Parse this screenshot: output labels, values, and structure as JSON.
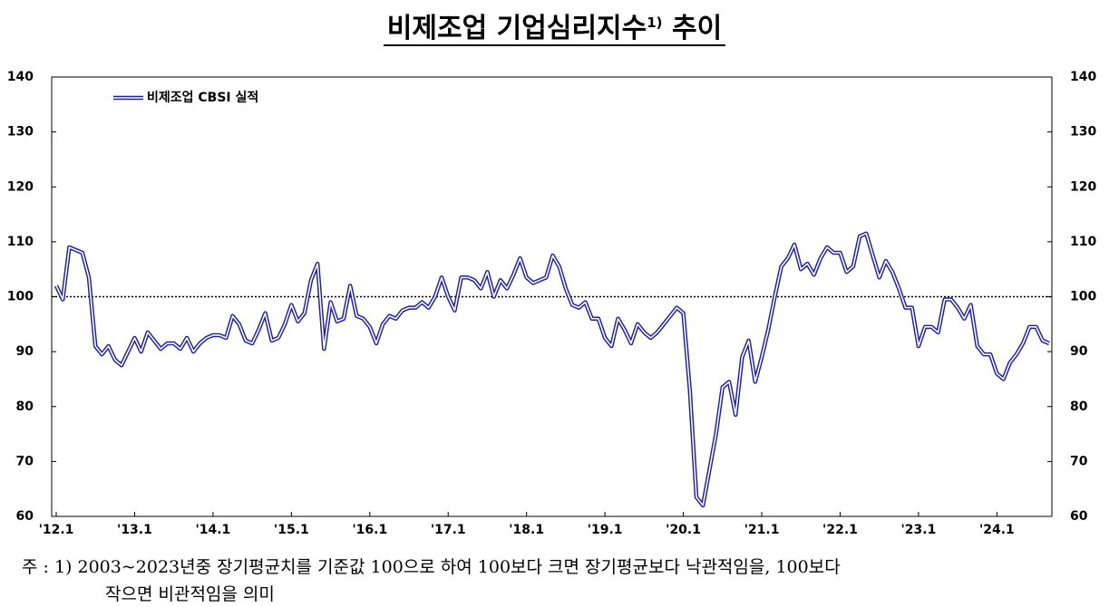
{
  "chart_data": {
    "type": "line",
    "title": "비제조업 기업심리지수",
    "title_note": "1)",
    "title_suffix": "추이",
    "categories": [
      "'12.1",
      null,
      null,
      null,
      null,
      null,
      null,
      null,
      null,
      null,
      null,
      null,
      "'13.1",
      null,
      null,
      null,
      null,
      null,
      null,
      null,
      null,
      null,
      null,
      null,
      "'14.1",
      null,
      null,
      null,
      null,
      null,
      null,
      null,
      null,
      null,
      null,
      null,
      "'15.1",
      null,
      null,
      null,
      null,
      null,
      null,
      null,
      null,
      null,
      null,
      null,
      "'16.1",
      null,
      null,
      null,
      null,
      null,
      null,
      null,
      null,
      null,
      null,
      null,
      "'17.1",
      null,
      null,
      null,
      null,
      null,
      null,
      null,
      null,
      null,
      null,
      null,
      "'18.1",
      null,
      null,
      null,
      null,
      null,
      null,
      null,
      null,
      null,
      null,
      null,
      "'19.1",
      null,
      null,
      null,
      null,
      null,
      null,
      null,
      null,
      null,
      null,
      null,
      "'20.1",
      null,
      null,
      null,
      null,
      null,
      null,
      null,
      null,
      null,
      null,
      null,
      "'21.1",
      null,
      null,
      null,
      null,
      null,
      null,
      null,
      null,
      null,
      null,
      null,
      "'22.1",
      null,
      null,
      null,
      null,
      null,
      null,
      null,
      null,
      null,
      null,
      null,
      "'23.1",
      null,
      null,
      null,
      null,
      null,
      null,
      null,
      null,
      null,
      null,
      null,
      "'24.1",
      null,
      null,
      null,
      null,
      null,
      null,
      null,
      null
    ],
    "series": [
      {
        "name": "비제조업 CBSI 실적",
        "color": "#1f1f9f",
        "values": [
          102,
          99.5,
          109,
          108.5,
          108,
          103.5,
          91,
          89.5,
          91,
          88.5,
          87.5,
          90,
          92.5,
          90,
          93.5,
          92,
          90.5,
          91.5,
          91.5,
          90.5,
          92.5,
          90,
          91.5,
          92.5,
          93,
          93,
          92.5,
          96.5,
          95,
          92,
          91.5,
          94,
          97,
          92,
          92.5,
          95,
          98.5,
          95.5,
          97,
          103,
          106,
          90.5,
          99,
          95.5,
          96,
          102,
          96.5,
          96,
          94.5,
          91.5,
          95,
          96.5,
          96,
          97.5,
          98,
          98,
          99,
          98,
          100,
          103.5,
          100,
          97.5,
          103.5,
          103.5,
          103,
          101.5,
          104.5,
          100,
          103,
          101.5,
          104,
          107,
          103.5,
          102.5,
          103,
          103.5,
          107.5,
          105.5,
          101.5,
          98.5,
          98,
          99,
          96,
          96,
          92.5,
          91,
          96,
          94,
          91.5,
          95,
          93.5,
          92.5,
          93.5,
          95,
          96.5,
          98,
          97,
          83,
          63.5,
          62,
          68.5,
          75,
          83.5,
          84.5,
          78.5,
          89,
          92,
          84.5,
          89,
          94,
          100,
          105.5,
          107,
          109.5,
          105,
          106,
          104,
          107,
          109,
          108,
          108,
          104.5,
          105.5,
          111,
          111.5,
          107.5,
          103.5,
          106.5,
          104.5,
          101.5,
          98,
          98,
          91,
          94.5,
          94.5,
          93.5,
          99.5,
          99.5,
          98,
          96,
          98.5,
          91,
          89.5,
          89.5,
          86,
          85,
          88,
          89.5,
          91.5,
          94.5,
          94.5,
          92,
          91.5
        ]
      }
    ],
    "ylim": [
      60,
      140
    ],
    "yticks": [
      60,
      70,
      80,
      90,
      100,
      110,
      120,
      130,
      140
    ],
    "y2lim": [
      60,
      140
    ],
    "y2ticks": [
      60,
      70,
      80,
      90,
      100,
      110,
      120,
      130,
      140
    ],
    "reference_line": 100,
    "legend": "upper left"
  },
  "notes": [
    "주 : 1) 2003~2023년중 장기평균치를 기준값 100으로 하여 100보다 크면 장기평균보다 낙관적임을, 100보다",
    "작으면 비관적임을 의미"
  ]
}
